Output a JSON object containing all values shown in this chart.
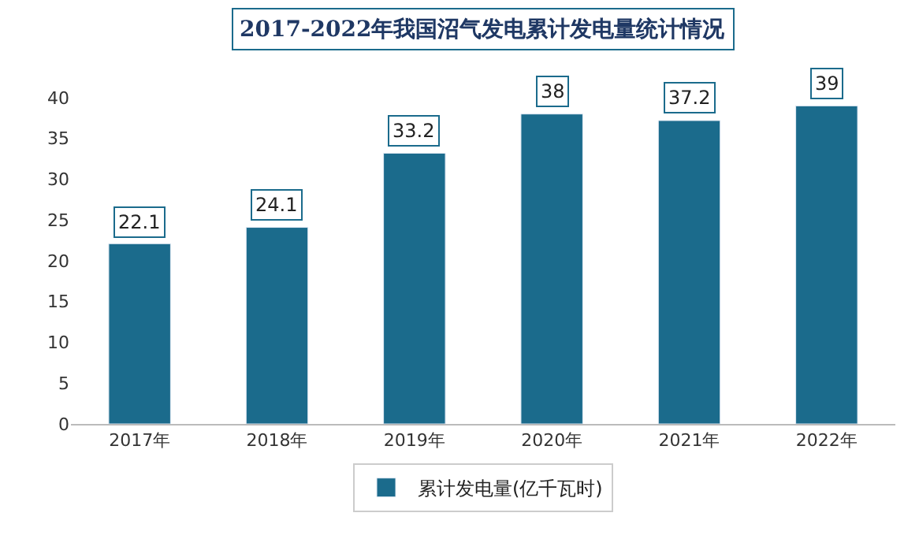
{
  "chart_data": {
    "type": "bar",
    "title": "2017-2022年我国沼气发电累计发电量统计情况",
    "categories": [
      "2017年",
      "2018年",
      "2019年",
      "2020年",
      "2021年",
      "2022年"
    ],
    "series": [
      {
        "name": "累计发电量(亿千瓦时)",
        "color": "#1b6b8c",
        "values": [
          22.1,
          24.1,
          33.2,
          38,
          37.2,
          39
        ]
      }
    ],
    "ylim": [
      0,
      40
    ],
    "yticks": [
      0,
      5,
      10,
      15,
      20,
      25,
      30,
      35,
      40
    ],
    "data_labels": true,
    "legend": "bottom"
  }
}
